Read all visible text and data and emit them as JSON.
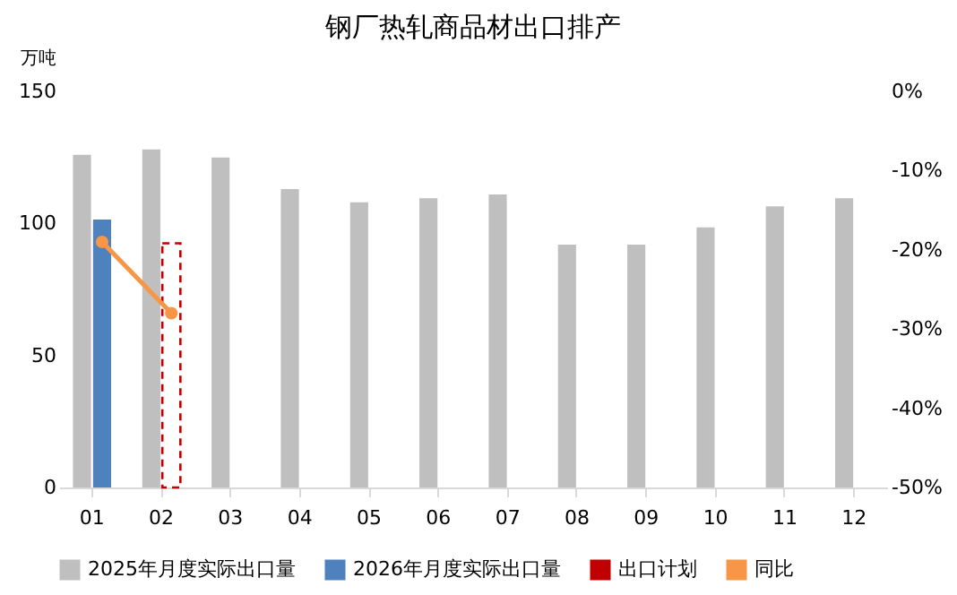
{
  "chart_data": {
    "type": "bar",
    "title": "钢厂热轧商品材出口排产",
    "ylabel": "万吨",
    "categories": [
      "01",
      "02",
      "03",
      "04",
      "05",
      "06",
      "07",
      "08",
      "09",
      "10",
      "11",
      "12"
    ],
    "series": [
      {
        "name": "2025年月度实际出口量",
        "color": "#bfbfbf",
        "values": [
          126,
          128,
          125,
          113,
          108,
          109.5,
          111,
          92,
          92,
          98.5,
          106.5,
          109.5
        ]
      },
      {
        "name": "2026年月度实际出口量",
        "color": "#4f81bd",
        "values": [
          101.5,
          null,
          null,
          null,
          null,
          null,
          null,
          null,
          null,
          null,
          null,
          null
        ]
      },
      {
        "name": "出口计划",
        "color": "#c00000",
        "line_style": "dashed",
        "values": [
          null,
          92.5,
          null,
          null,
          null,
          null,
          null,
          null,
          null,
          null,
          null,
          null
        ]
      },
      {
        "name": "同比",
        "type": "line",
        "axis": "y2",
        "color": "#f79646",
        "marker": "circle",
        "values": [
          -19,
          -28,
          null,
          null,
          null,
          null,
          null,
          null,
          null,
          null,
          null,
          null
        ]
      }
    ],
    "ylim": [
      0,
      150
    ],
    "yticks": [
      0,
      50,
      100,
      150
    ],
    "y2lim": [
      -50,
      0
    ],
    "y2ticks": [
      {
        "value": -50,
        "label": "-50%"
      },
      {
        "value": -40,
        "label": "-40%"
      },
      {
        "value": -30,
        "label": "-30%"
      },
      {
        "value": -20,
        "label": "-20%"
      },
      {
        "value": -10,
        "label": "-10%"
      },
      {
        "value": 0,
        "label": "0%"
      }
    ],
    "grid": false,
    "legend": "bottom"
  }
}
